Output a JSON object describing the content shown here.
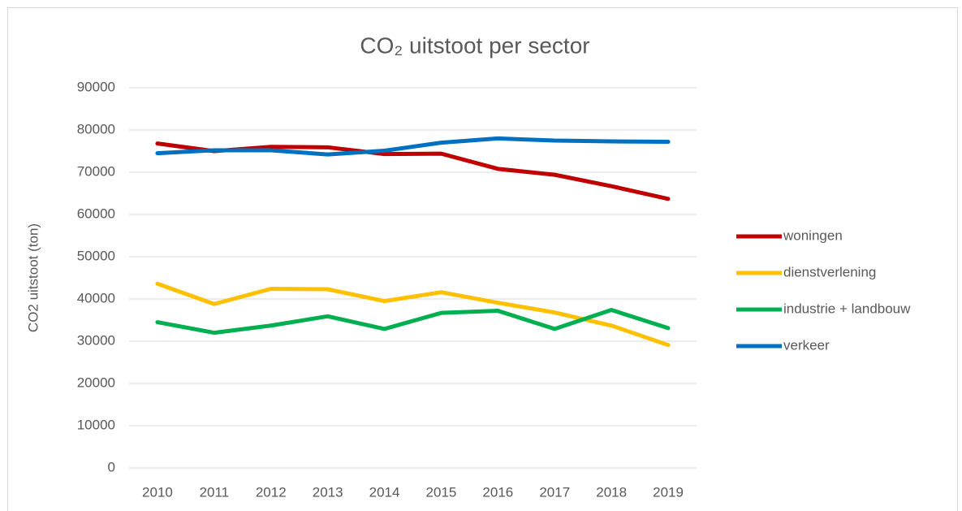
{
  "chart_data": {
    "type": "line",
    "title": "CO₂ uitstoot per sector",
    "y_label": "CO2 uitstoot (ton)",
    "categories": [
      "2010",
      "2011",
      "2012",
      "2013",
      "2014",
      "2015",
      "2016",
      "2017",
      "2018",
      "2019"
    ],
    "series": [
      {
        "name": "woningen",
        "color": "#c00000",
        "values": [
          76800,
          75000,
          76000,
          75900,
          74300,
          74400,
          70800,
          69400,
          66700,
          63700
        ]
      },
      {
        "name": "dienstverlening",
        "color": "#ffc000",
        "values": [
          43600,
          38800,
          42400,
          42300,
          39500,
          41600,
          39100,
          36800,
          33700,
          29100
        ]
      },
      {
        "name": "industrie + landbouw",
        "color": "#00b050",
        "values": [
          34500,
          32000,
          33700,
          35900,
          32900,
          36700,
          37200,
          32900,
          37400,
          33100
        ]
      },
      {
        "name": "verkeer",
        "color": "#0070c0",
        "values": [
          74500,
          75200,
          75200,
          74200,
          75100,
          77000,
          78000,
          77500,
          77300,
          77200
        ]
      }
    ],
    "ylim": [
      0,
      90000
    ],
    "yticks": [
      0,
      10000,
      20000,
      30000,
      40000,
      50000,
      60000,
      70000,
      80000,
      90000
    ],
    "grid": true,
    "legend": "right"
  }
}
